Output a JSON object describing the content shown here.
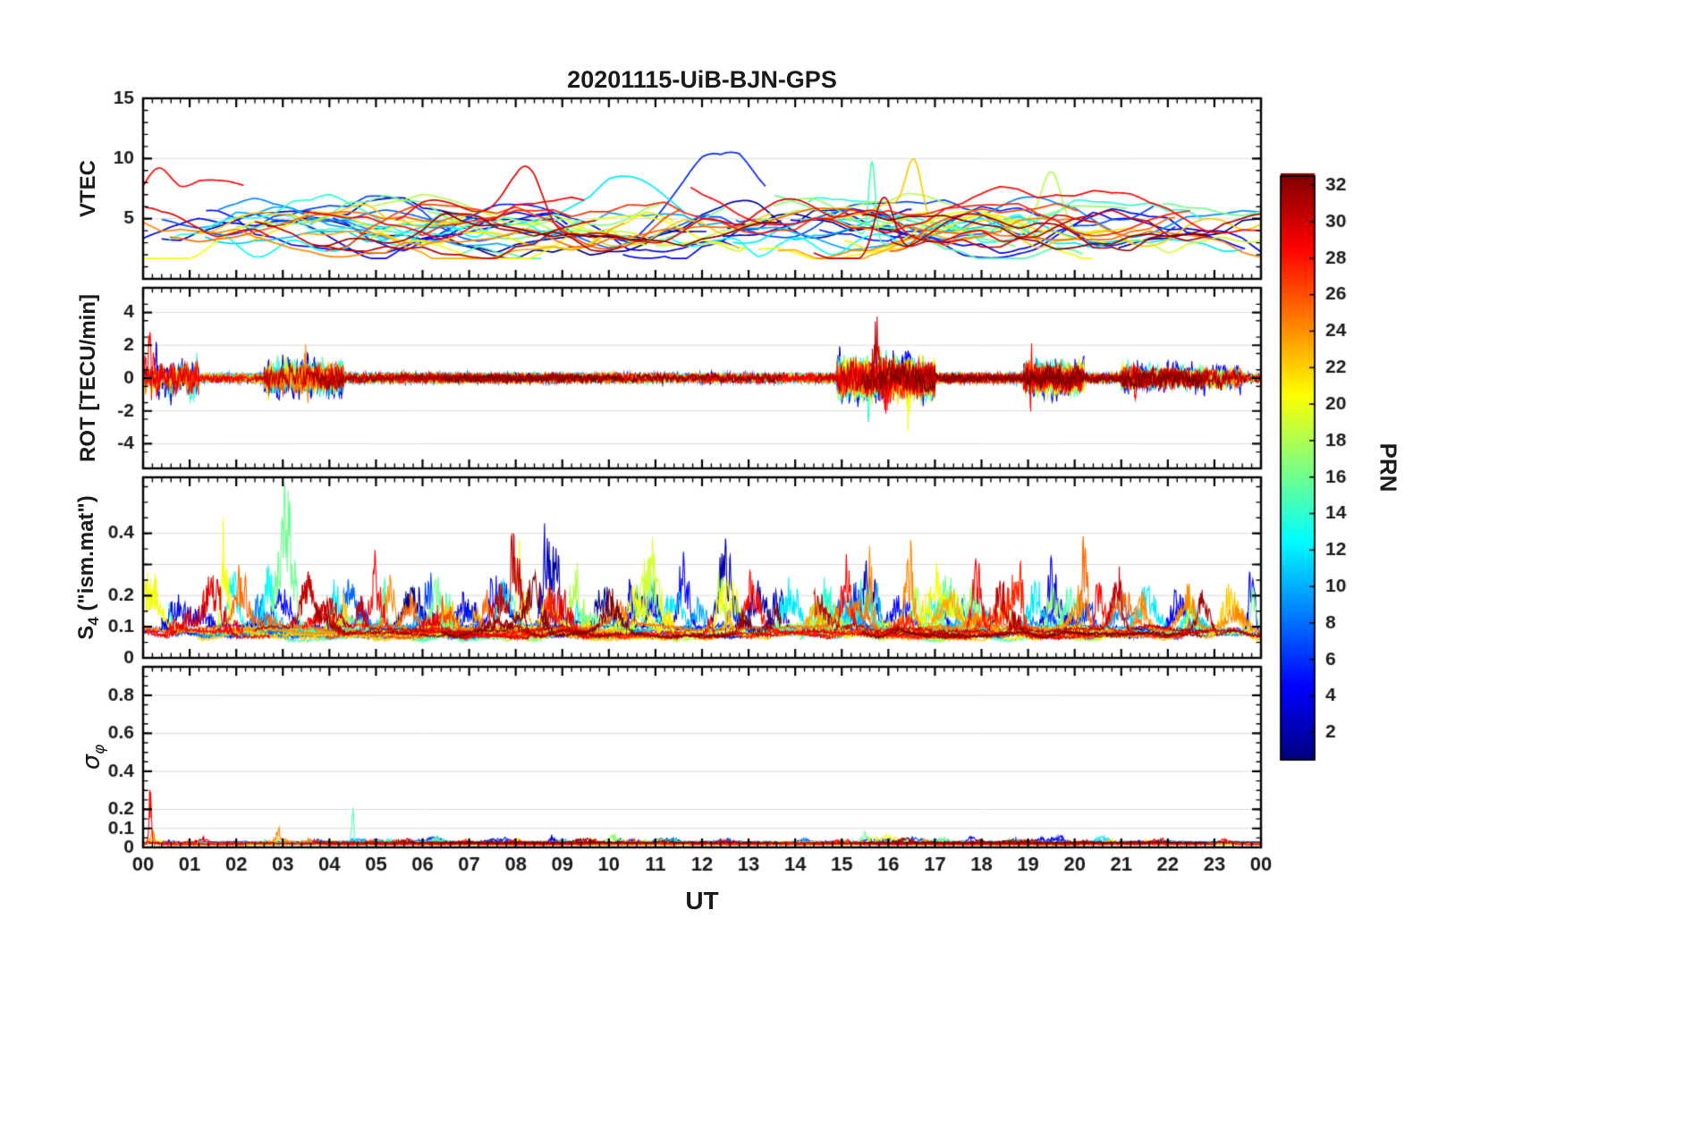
{
  "title": "20201115-UiB-BJN-GPS",
  "xlabel": "UT",
  "colorbar": {
    "label": "PRN",
    "ticks": [
      2,
      4,
      6,
      8,
      10,
      12,
      14,
      16,
      18,
      20,
      22,
      24,
      26,
      28,
      30,
      32
    ],
    "range": [
      0.5,
      32.5
    ],
    "colormap": "jet",
    "n_series": 32
  },
  "x_axis": {
    "range": [
      0,
      24
    ],
    "major_ticks": [
      0,
      1,
      2,
      3,
      4,
      5,
      6,
      7,
      8,
      9,
      10,
      11,
      12,
      13,
      14,
      15,
      16,
      17,
      18,
      19,
      20,
      21,
      22,
      23,
      24
    ],
    "tick_labels": [
      "00",
      "01",
      "02",
      "03",
      "04",
      "05",
      "06",
      "07",
      "08",
      "09",
      "10",
      "11",
      "12",
      "13",
      "14",
      "15",
      "16",
      "17",
      "18",
      "19",
      "20",
      "21",
      "22",
      "23",
      "00"
    ],
    "minor_step": 0.2,
    "unit": "hours UT"
  },
  "chart_data": [
    {
      "type": "line",
      "panel": "VTEC",
      "ylabel": "VTEC",
      "ylabel_parts": {
        "main": "VTEC"
      },
      "ylim": [
        0,
        15
      ],
      "yticks": [
        5,
        10,
        15
      ],
      "ytick_labels": [
        "5",
        "10",
        "15"
      ],
      "yminor": 1,
      "grid": [
        5,
        10
      ],
      "y_range_of_data": [
        1.8,
        11
      ],
      "description": "Vertical TEC arcs for all GPS satellites PRN 1-32, mostly fluctuating between 2 and 8 TECU, with enhancements to 9-11 TECU near 09:30-13:00 UT and a sharp ~11 TECU spike near 15:40 UT",
      "gen": {
        "seed": 11,
        "base_range": [
          2.8,
          5.8
        ],
        "noise": 0.35
      },
      "events": [
        {
          "prn": 12,
          "t": 10.2,
          "a": 5.5,
          "w": 1.5
        },
        {
          "prn": 6,
          "t": 12.3,
          "a": 5.0,
          "w": 1.2
        },
        {
          "prn": 2,
          "t": 13.0,
          "a": 4.0,
          "w": 1.0
        },
        {
          "prn": 30,
          "t": 15.9,
          "a": 5.0,
          "w": 0.3
        },
        {
          "prn": 15,
          "t": 15.65,
          "a": 6.5,
          "w": 0.1
        },
        {
          "prn": 22,
          "t": 16.55,
          "a": 5.0,
          "w": 0.25
        },
        {
          "prn": 18,
          "t": 19.5,
          "a": 4.5,
          "w": 0.3
        },
        {
          "prn": 29,
          "t": 8.2,
          "a": 4.0,
          "w": 0.5
        },
        {
          "prn": 28,
          "t": 0.3,
          "a": 2.5,
          "w": 0.4
        }
      ]
    },
    {
      "type": "line",
      "panel": "ROT",
      "ylabel": "ROT [TECU/min]",
      "ylabel_parts": {
        "main": "ROT [TECU/min]"
      },
      "ylim": [
        -5.5,
        5.5
      ],
      "yticks": [
        -4,
        -2,
        0,
        2,
        4
      ],
      "ytick_labels": [
        "-4",
        "-2",
        "0",
        "2",
        "4"
      ],
      "yminor": 1,
      "grid": [
        -4,
        -2,
        0,
        2,
        4
      ],
      "y_range_of_data": [
        -4.6,
        4.5
      ],
      "description": "Rate of TEC: quiet band around 0 ± 0.5 TECU/min with bursty intervals near 00-01, 03-04, 15:30-16:40, 19:00-19:45 and 21:00-23:30 UT reaching ±4 TECU/min",
      "gen": {
        "seed": 22,
        "quiet_amp": 0.3,
        "activity": [
          {
            "t0": 0.0,
            "t1": 1.2,
            "a": 0.9
          },
          {
            "t0": 2.6,
            "t1": 4.3,
            "a": 0.8
          },
          {
            "t0": 14.9,
            "t1": 17.0,
            "a": 1.1
          },
          {
            "t0": 18.9,
            "t1": 20.2,
            "a": 0.8
          },
          {
            "t0": 21.0,
            "t1": 23.6,
            "a": 0.6
          }
        ]
      },
      "events": [
        {
          "prn": 14,
          "t": 15.55,
          "a": 3.8,
          "w": 0.06
        },
        {
          "prn": 30,
          "t": 15.75,
          "a": 3.2,
          "w": 0.1
        },
        {
          "prn": 28,
          "t": 15.95,
          "a": 4.2,
          "w": 0.08
        },
        {
          "prn": 20,
          "t": 16.45,
          "a": 2.8,
          "w": 0.08
        },
        {
          "prn": 28,
          "t": 19.05,
          "a": 4.0,
          "w": 0.05
        },
        {
          "prn": 4,
          "t": 19.65,
          "a": 3.3,
          "w": 0.06
        },
        {
          "prn": 16,
          "t": 3.85,
          "a": 2.3,
          "w": 0.05
        },
        {
          "prn": 28,
          "t": 0.15,
          "a": 2.1,
          "w": 0.1
        },
        {
          "prn": 4,
          "t": 0.3,
          "a": 1.9,
          "w": 0.06
        },
        {
          "prn": 24,
          "t": 3.5,
          "a": 1.7,
          "w": 0.08
        },
        {
          "prn": 8,
          "t": 4.0,
          "a": 1.5,
          "w": 0.06
        },
        {
          "prn": 4,
          "t": 22.5,
          "a": 1.4,
          "w": 0.06
        },
        {
          "prn": 28,
          "t": 21.3,
          "a": 1.3,
          "w": 0.06
        },
        {
          "prn": 2,
          "t": 12.2,
          "a": 0.9,
          "w": 0.05
        }
      ]
    },
    {
      "type": "line",
      "panel": "S4",
      "ylabel": "S4 (\"ism.mat\")",
      "ylabel_parts": {
        "main": "S",
        "sub": "4",
        "rest": " (\"ism.mat\")"
      },
      "ylim": [
        0,
        0.58
      ],
      "yticks": [
        0,
        0.1,
        0.2,
        0.3,
        0.4
      ],
      "ytick_labels": [
        "0",
        "0.1",
        "0.2",
        "",
        "0.4"
      ],
      "yminor": 0.05,
      "grid": [
        0.1,
        0.2,
        0.3,
        0.4
      ],
      "y_range_of_data": [
        0.03,
        0.55
      ],
      "description": "Amplitude scintillation index S4: background 0.05-0.1 with frequent intermittent enhancements 0.2-0.55 all day, strongest near 01:45, 08:00-08:50, 12:30, 16:30, 20:15 and 23:50 UT",
      "gen": {
        "seed": 33,
        "base_range": [
          0.05,
          0.08
        ],
        "bursts_per_series": [
          5,
          9
        ],
        "burst_amp": [
          0.04,
          0.2
        ]
      },
      "events": [
        {
          "prn": 20,
          "t": 1.75,
          "a": 0.45,
          "w": 0.1
        },
        {
          "prn": 29,
          "t": 1.5,
          "a": 0.28,
          "w": 0.25
        },
        {
          "prn": 25,
          "t": 2.1,
          "a": 0.22,
          "w": 0.2
        },
        {
          "prn": 13,
          "t": 2.7,
          "a": 0.26,
          "w": 0.15
        },
        {
          "prn": 16,
          "t": 3.0,
          "a": 0.22,
          "w": 0.2
        },
        {
          "prn": 30,
          "t": 3.5,
          "a": 0.22,
          "w": 0.2
        },
        {
          "prn": 28,
          "t": 5.0,
          "a": 0.28,
          "w": 0.2
        },
        {
          "prn": 24,
          "t": 5.3,
          "a": 0.22,
          "w": 0.15
        },
        {
          "prn": 16,
          "t": 6.3,
          "a": 0.2,
          "w": 0.2
        },
        {
          "prn": 6,
          "t": 7.0,
          "a": 0.13,
          "w": 0.2
        },
        {
          "prn": 30,
          "t": 8.0,
          "a": 0.38,
          "w": 0.15
        },
        {
          "prn": 20,
          "t": 8.05,
          "a": 0.45,
          "w": 0.06
        },
        {
          "prn": 3,
          "t": 8.65,
          "a": 0.4,
          "w": 0.15
        },
        {
          "prn": 2,
          "t": 8.85,
          "a": 0.32,
          "w": 0.1
        },
        {
          "prn": 18,
          "t": 9.3,
          "a": 0.26,
          "w": 0.2
        },
        {
          "prn": 4,
          "t": 10.45,
          "a": 0.33,
          "w": 0.1
        },
        {
          "prn": 16,
          "t": 10.9,
          "a": 0.23,
          "w": 0.15
        },
        {
          "prn": 5,
          "t": 11.6,
          "a": 0.28,
          "w": 0.15
        },
        {
          "prn": 2,
          "t": 12.5,
          "a": 0.36,
          "w": 0.2
        },
        {
          "prn": 18,
          "t": 12.4,
          "a": 0.28,
          "w": 0.1
        },
        {
          "prn": 28,
          "t": 13.1,
          "a": 0.23,
          "w": 0.2
        },
        {
          "prn": 12,
          "t": 13.9,
          "a": 0.2,
          "w": 0.25
        },
        {
          "prn": 28,
          "t": 15.1,
          "a": 0.33,
          "w": 0.15
        },
        {
          "prn": 24,
          "t": 15.6,
          "a": 0.28,
          "w": 0.1
        },
        {
          "prn": 24,
          "t": 16.45,
          "a": 0.33,
          "w": 0.15
        },
        {
          "prn": 20,
          "t": 17.0,
          "a": 0.23,
          "w": 0.2
        },
        {
          "prn": 28,
          "t": 17.9,
          "a": 0.26,
          "w": 0.15
        },
        {
          "prn": 30,
          "t": 18.4,
          "a": 0.23,
          "w": 0.15
        },
        {
          "prn": 4,
          "t": 19.5,
          "a": 0.28,
          "w": 0.2
        },
        {
          "prn": 25,
          "t": 20.2,
          "a": 0.38,
          "w": 0.1
        },
        {
          "prn": 30,
          "t": 20.9,
          "a": 0.26,
          "w": 0.15
        },
        {
          "prn": 24,
          "t": 22.4,
          "a": 0.18,
          "w": 0.2
        },
        {
          "prn": 4,
          "t": 23.8,
          "a": 0.36,
          "w": 0.08
        },
        {
          "prn": 16,
          "t": 23.85,
          "a": 0.23,
          "w": 0.08
        }
      ]
    },
    {
      "type": "line",
      "panel": "sigma_phi",
      "ylabel": "σφ",
      "ylabel_parts": {
        "main": "σ",
        "sub": "φ"
      },
      "ylim": [
        0,
        0.95
      ],
      "yticks": [
        0,
        0.1,
        0.2,
        0.4,
        0.6,
        0.8
      ],
      "ytick_labels": [
        "0",
        "0.1",
        "0.2",
        "0.4",
        "0.6",
        "0.8"
      ],
      "yminor": 0.05,
      "grid": [
        0.1,
        0.2,
        0.4,
        0.6,
        0.8
      ],
      "y_range_of_data": [
        0.005,
        0.36
      ],
      "description": "Phase scintillation index: flat near 0.01-0.05 all day with isolated spikes to ~0.33 at 00:10 UT and ~0.35 at 04:30 UT",
      "gen": {
        "seed": 44,
        "base_range": [
          0.012,
          0.024
        ]
      },
      "events": [
        {
          "prn": 28,
          "t": 0.15,
          "a": 0.3,
          "w": 0.04
        },
        {
          "prn": 24,
          "t": 0.2,
          "a": 0.1,
          "w": 0.05
        },
        {
          "prn": 15,
          "t": 4.5,
          "a": 0.33,
          "w": 0.03
        },
        {
          "prn": 24,
          "t": 2.9,
          "a": 0.07,
          "w": 0.05
        },
        {
          "prn": 20,
          "t": 16.0,
          "a": 0.05,
          "w": 0.3
        },
        {
          "prn": 4,
          "t": 19.7,
          "a": 0.07,
          "w": 0.05
        },
        {
          "prn": 16,
          "t": 15.5,
          "a": 0.06,
          "w": 0.1
        },
        {
          "prn": 20,
          "t": 8.05,
          "a": 0.05,
          "w": 0.05
        }
      ]
    }
  ]
}
